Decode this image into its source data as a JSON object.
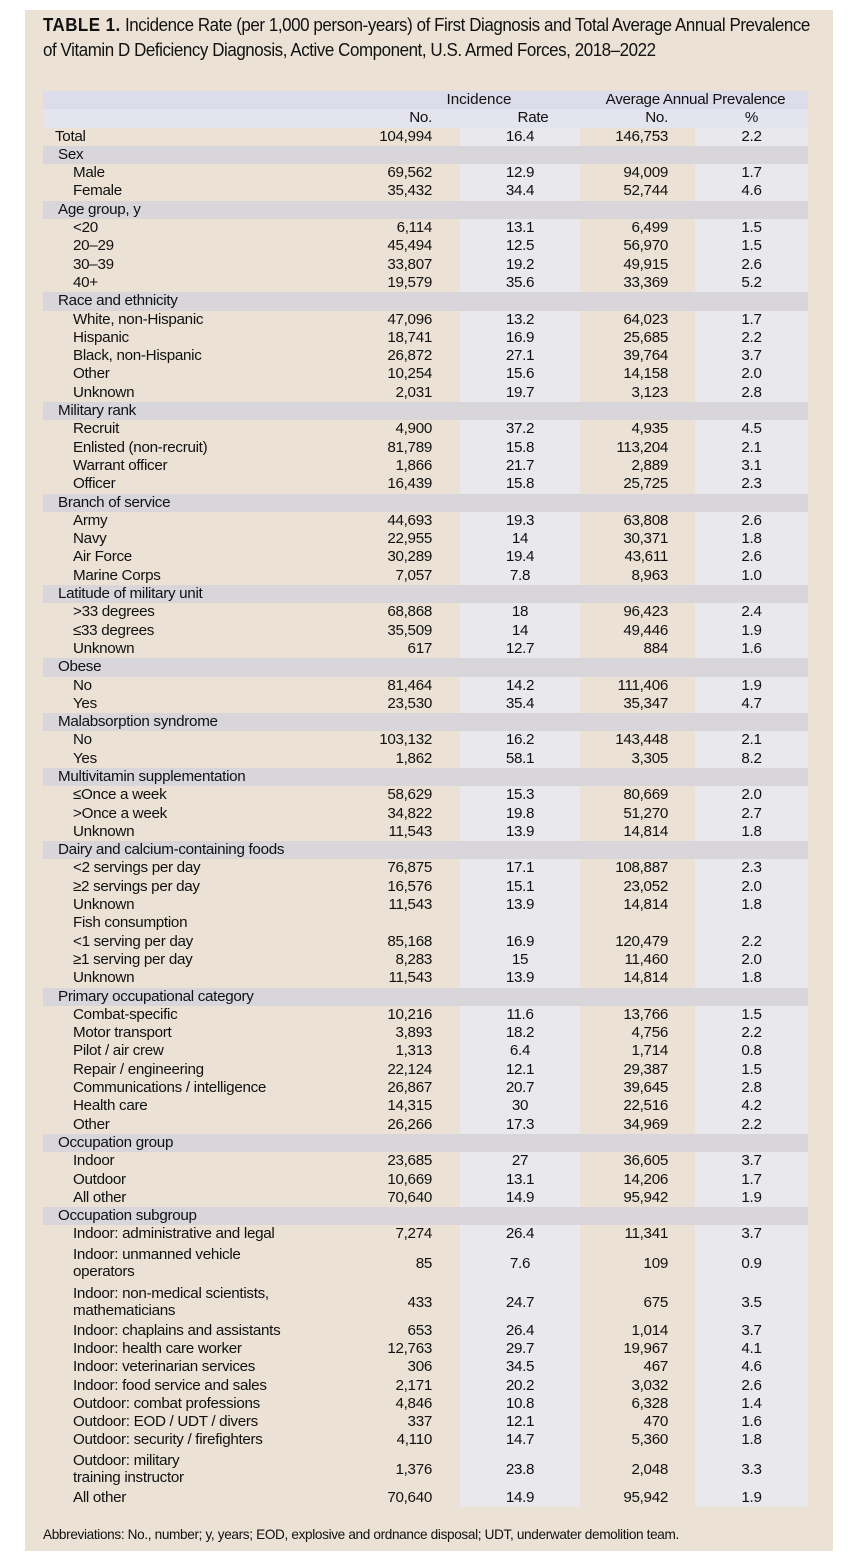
{
  "title": {
    "label": "TABLE 1.",
    "text": "Incidence Rate (per 1,000 person-years) of First Diagnosis and Total Average Annual Prevalence of Vitamin D Deficiency Diagnosis, Active Component, U.S. Armed Forces, 2018–2022"
  },
  "header": {
    "group1": "Incidence",
    "group2": "Average Annual Prevalence",
    "columns": [
      "No.",
      "Rate",
      "No.",
      "%"
    ]
  },
  "rows": [
    {
      "type": "total",
      "label": "Total",
      "values": [
        "104,994",
        "16.4",
        "146,753",
        "2.2"
      ]
    },
    {
      "type": "section",
      "label": "Sex"
    },
    {
      "type": "item",
      "label": "Male",
      "values": [
        "69,562",
        "12.9",
        "94,009",
        "1.7"
      ]
    },
    {
      "type": "item",
      "label": "Female",
      "values": [
        "35,432",
        "34.4",
        "52,744",
        "4.6"
      ]
    },
    {
      "type": "section",
      "label": "Age group, y"
    },
    {
      "type": "item",
      "label": "<20",
      "values": [
        "6,114",
        "13.1",
        "6,499",
        "1.5"
      ]
    },
    {
      "type": "item",
      "label": "20–29",
      "values": [
        "45,494",
        "12.5",
        "56,970",
        "1.5"
      ]
    },
    {
      "type": "item",
      "label": "30–39",
      "values": [
        "33,807",
        "19.2",
        "49,915",
        "2.6"
      ]
    },
    {
      "type": "item",
      "label": "40+",
      "values": [
        "19,579",
        "35.6",
        "33,369",
        "5.2"
      ]
    },
    {
      "type": "section",
      "label": "Race and ethnicity"
    },
    {
      "type": "item",
      "label": "White, non-Hispanic",
      "values": [
        "47,096",
        "13.2",
        "64,023",
        "1.7"
      ]
    },
    {
      "type": "item",
      "label": "Hispanic",
      "values": [
        "18,741",
        "16.9",
        "25,685",
        "2.2"
      ]
    },
    {
      "type": "item",
      "label": "Black, non-Hispanic",
      "values": [
        "26,872",
        "27.1",
        "39,764",
        "3.7"
      ]
    },
    {
      "type": "item",
      "label": "Other",
      "values": [
        "10,254",
        "15.6",
        "14,158",
        "2.0"
      ]
    },
    {
      "type": "item",
      "label": "Unknown",
      "values": [
        "2,031",
        "19.7",
        "3,123",
        "2.8"
      ]
    },
    {
      "type": "section",
      "label": "Military rank"
    },
    {
      "type": "item",
      "label": "Recruit",
      "values": [
        "4,900",
        "37.2",
        "4,935",
        "4.5"
      ]
    },
    {
      "type": "item",
      "label": "Enlisted (non-recruit)",
      "values": [
        "81,789",
        "15.8",
        "113,204",
        "2.1"
      ]
    },
    {
      "type": "item",
      "label": "Warrant officer",
      "values": [
        "1,866",
        "21.7",
        "2,889",
        "3.1"
      ]
    },
    {
      "type": "item",
      "label": "Officer",
      "values": [
        "16,439",
        "15.8",
        "25,725",
        "2.3"
      ]
    },
    {
      "type": "section",
      "label": "Branch of service"
    },
    {
      "type": "item",
      "label": "Army",
      "values": [
        "44,693",
        "19.3",
        "63,808",
        "2.6"
      ]
    },
    {
      "type": "item",
      "label": "Navy",
      "values": [
        "22,955",
        "14",
        "30,371",
        "1.8"
      ]
    },
    {
      "type": "item",
      "label": "Air Force",
      "values": [
        "30,289",
        "19.4",
        "43,611",
        "2.6"
      ]
    },
    {
      "type": "item",
      "label": "Marine Corps",
      "values": [
        "7,057",
        "7.8",
        "8,963",
        "1.0"
      ]
    },
    {
      "type": "section",
      "label": "Latitude of military unit"
    },
    {
      "type": "item",
      "label": ">33 degrees",
      "values": [
        "68,868",
        "18",
        "96,423",
        "2.4"
      ]
    },
    {
      "type": "item",
      "label": "≤33 degrees",
      "values": [
        "35,509",
        "14",
        "49,446",
        "1.9"
      ]
    },
    {
      "type": "item",
      "label": "Unknown",
      "values": [
        "617",
        "12.7",
        "884",
        "1.6"
      ]
    },
    {
      "type": "section",
      "label": "Obese"
    },
    {
      "type": "item",
      "label": "No",
      "values": [
        "81,464",
        "14.2",
        "111,406",
        "1.9"
      ]
    },
    {
      "type": "item",
      "label": "Yes",
      "values": [
        "23,530",
        "35.4",
        "35,347",
        "4.7"
      ]
    },
    {
      "type": "section",
      "label": "Malabsorption syndrome"
    },
    {
      "type": "item",
      "label": "No",
      "values": [
        "103,132",
        "16.2",
        "143,448",
        "2.1"
      ]
    },
    {
      "type": "item",
      "label": "Yes",
      "values": [
        "1,862",
        "58.1",
        "3,305",
        "8.2"
      ]
    },
    {
      "type": "section",
      "label": "Multivitamin supplementation"
    },
    {
      "type": "item",
      "label": "≤Once a week",
      "values": [
        "58,629",
        "15.3",
        "80,669",
        "2.0"
      ]
    },
    {
      "type": "item",
      "label": ">Once a week",
      "values": [
        "34,822",
        "19.8",
        "51,270",
        "2.7"
      ]
    },
    {
      "type": "item",
      "label": "Unknown",
      "values": [
        "11,543",
        "13.9",
        "14,814",
        "1.8"
      ]
    },
    {
      "type": "section",
      "label": "Dairy and calcium-containing foods"
    },
    {
      "type": "item",
      "label": "<2 servings per day",
      "values": [
        "76,875",
        "17.1",
        "108,887",
        "2.3"
      ]
    },
    {
      "type": "item",
      "label": "≥2 servings per day",
      "values": [
        "16,576",
        "15.1",
        "23,052",
        "2.0"
      ]
    },
    {
      "type": "item",
      "label": "Unknown",
      "values": [
        "11,543",
        "13.9",
        "14,814",
        "1.8"
      ]
    },
    {
      "type": "plain",
      "label": "Fish consumption"
    },
    {
      "type": "item",
      "label": "<1 serving per day",
      "values": [
        "85,168",
        "16.9",
        "120,479",
        "2.2"
      ]
    },
    {
      "type": "item",
      "label": "≥1 serving per day",
      "values": [
        "8,283",
        "15",
        "11,460",
        "2.0"
      ]
    },
    {
      "type": "item",
      "label": "Unknown",
      "values": [
        "11,543",
        "13.9",
        "14,814",
        "1.8"
      ]
    },
    {
      "type": "section",
      "label": "Primary occupational category"
    },
    {
      "type": "item",
      "label": "Combat-specific",
      "values": [
        "10,216",
        "11.6",
        "13,766",
        "1.5"
      ]
    },
    {
      "type": "item",
      "label": "Motor transport",
      "values": [
        "3,893",
        "18.2",
        "4,756",
        "2.2"
      ]
    },
    {
      "type": "item",
      "label": "Pilot / air crew",
      "values": [
        "1,313",
        "6.4",
        "1,714",
        "0.8"
      ]
    },
    {
      "type": "item",
      "label": "Repair / engineering",
      "values": [
        "22,124",
        "12.1",
        "29,387",
        "1.5"
      ]
    },
    {
      "type": "item",
      "label": "Communications / intelligence",
      "values": [
        "26,867",
        "20.7",
        "39,645",
        "2.8"
      ]
    },
    {
      "type": "item",
      "label": "Health care",
      "values": [
        "14,315",
        "30",
        "22,516",
        "4.2"
      ]
    },
    {
      "type": "item",
      "label": "Other",
      "values": [
        "26,266",
        "17.3",
        "34,969",
        "2.2"
      ]
    },
    {
      "type": "section",
      "label": "Occupation group"
    },
    {
      "type": "item",
      "label": "Indoor",
      "values": [
        "23,685",
        "27",
        "36,605",
        "3.7"
      ]
    },
    {
      "type": "item",
      "label": "Outdoor",
      "values": [
        "10,669",
        "13.1",
        "14,206",
        "1.7"
      ]
    },
    {
      "type": "item",
      "label": "All other",
      "values": [
        "70,640",
        "14.9",
        "95,942",
        "1.9"
      ]
    },
    {
      "type": "section",
      "label": "Occupation subgroup"
    },
    {
      "type": "item",
      "label": "Indoor: administrative and legal",
      "values": [
        "7,274",
        "26.4",
        "11,341",
        "3.7"
      ]
    },
    {
      "type": "item",
      "tall": true,
      "label": "Indoor: unmanned vehicle\noperators",
      "values": [
        "85",
        "7.6",
        "109",
        "0.9"
      ]
    },
    {
      "type": "item",
      "tall": true,
      "label": "Indoor: non-medical scientists,\nmathematicians",
      "values": [
        "433",
        "24.7",
        "675",
        "3.5"
      ]
    },
    {
      "type": "item",
      "label": "Indoor: chaplains and assistants",
      "values": [
        "653",
        "26.4",
        "1,014",
        "3.7"
      ]
    },
    {
      "type": "item",
      "label": "Indoor: health care worker",
      "values": [
        "12,763",
        "29.7",
        "19,967",
        "4.1"
      ]
    },
    {
      "type": "item",
      "label": "Indoor: veterinarian services",
      "values": [
        "306",
        "34.5",
        "467",
        "4.6"
      ]
    },
    {
      "type": "item",
      "label": "Indoor: food service and sales",
      "values": [
        "2,171",
        "20.2",
        "3,032",
        "2.6"
      ]
    },
    {
      "type": "item",
      "label": "Outdoor: combat professions",
      "values": [
        "4,846",
        "10.8",
        "6,328",
        "1.4"
      ]
    },
    {
      "type": "item",
      "label": "Outdoor: EOD / UDT / divers",
      "values": [
        "337",
        "12.1",
        "470",
        "1.6"
      ]
    },
    {
      "type": "item",
      "label": "Outdoor: security / firefighters",
      "values": [
        "4,110",
        "14.7",
        "5,360",
        "1.8"
      ]
    },
    {
      "type": "item",
      "tall": true,
      "label": "Outdoor: military\ntraining instructor",
      "values": [
        "1,376",
        "23.8",
        "2,048",
        "3.3"
      ]
    },
    {
      "type": "item",
      "label": "All other",
      "values": [
        "70,640",
        "14.9",
        "95,942",
        "1.9"
      ]
    }
  ],
  "footnote": "Abbreviations: No., number; y, years; EOD, explosive and ordnance disposal; UDT, underwater demolition team.",
  "colors": {
    "panel": "#ebe2d5",
    "header": "#dcdcea",
    "section": "#d8d6da",
    "stripe": "#e9e8ec"
  }
}
